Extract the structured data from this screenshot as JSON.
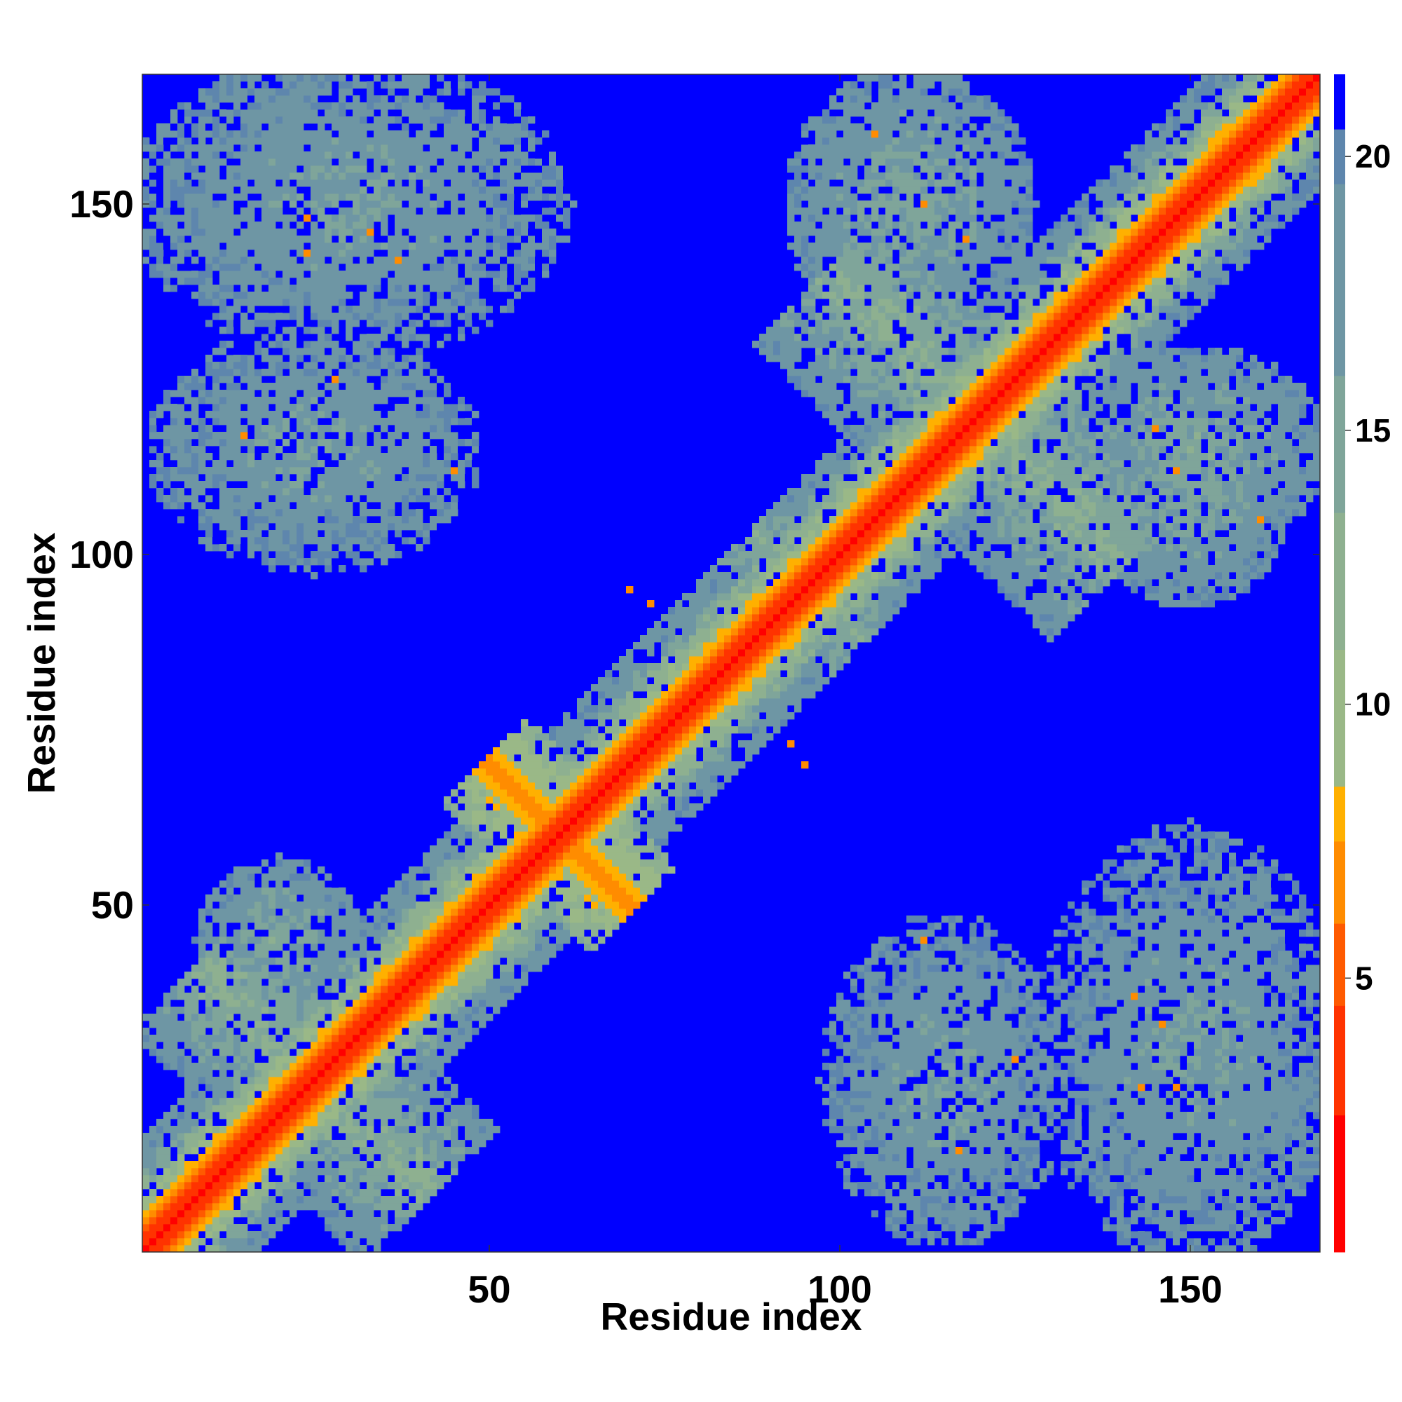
{
  "chart_data": {
    "type": "heatmap",
    "title": "",
    "xlabel": "Residue index",
    "ylabel": "Residue index",
    "n_residues": 168,
    "xlim": [
      1,
      168
    ],
    "ylim": [
      1,
      168
    ],
    "x_ticks": [
      50,
      100,
      150
    ],
    "y_ticks": [
      50,
      100,
      150
    ],
    "colorbar": {
      "ticks": [
        5,
        10,
        15,
        20
      ],
      "range": [
        0,
        21.5
      ],
      "colors": [
        "#ff0000",
        "#ff3300",
        "#ff5a00",
        "#ff8c00",
        "#ffb000",
        "#9ab887",
        "#8eb090",
        "#7fa59a",
        "#6e96a4",
        "#5e86ad",
        "#0000ff"
      ],
      "stops": [
        0,
        2.5,
        4.5,
        6.0,
        7.5,
        8.5,
        11,
        13.5,
        16,
        19.5,
        20.5,
        21.5
      ]
    },
    "value_cap": 21.5,
    "diagonal_band": {
      "core_width": 2.6,
      "halo_width": 13
    },
    "contact_arms": [
      {
        "center": [
          25,
          25
        ],
        "dir": [
          1,
          -1
        ],
        "half_length": 24,
        "width": 14,
        "base": 13
      },
      {
        "center": [
          60,
          60
        ],
        "dir": [
          1,
          -1
        ],
        "half_length": 15,
        "width": 9,
        "base": 7
      },
      {
        "center": [
          120,
          120
        ],
        "dir": [
          1,
          -1
        ],
        "half_length": 30,
        "width": 16,
        "base": 13
      },
      {
        "center": [
          95,
          95
        ],
        "dir": [
          1,
          -1
        ],
        "half_length": 12,
        "width": 12,
        "base": 14
      }
    ],
    "contact_blobs": [
      {
        "center": [
          30,
          150
        ],
        "radius": [
          32,
          22
        ],
        "base": 15
      },
      {
        "center": [
          25,
          115
        ],
        "radius": [
          24,
          18
        ],
        "base": 15
      },
      {
        "center": [
          110,
          150
        ],
        "radius": [
          18,
          20
        ],
        "base": 14
      },
      {
        "center": [
          150,
          115
        ],
        "radius": [
          20,
          15
        ],
        "base": 14
      },
      {
        "center": [
          150,
          30
        ],
        "radius": [
          22,
          32
        ],
        "base": 15
      },
      {
        "center": [
          115,
          25
        ],
        "radius": [
          18,
          24
        ],
        "base": 15
      },
      {
        "center": [
          150,
          110
        ],
        "radius": [
          15,
          18
        ],
        "base": 14
      },
      {
        "center": [
          20,
          45
        ],
        "radius": [
          12,
          12
        ],
        "base": 14
      }
    ],
    "hotspots": [
      [
        24,
        148
      ],
      [
        24,
        143
      ],
      [
        33,
        146
      ],
      [
        37,
        142
      ],
      [
        28,
        125
      ],
      [
        15,
        117
      ],
      [
        45,
        112
      ],
      [
        70,
        95
      ],
      [
        73,
        93
      ],
      [
        148,
        24
      ],
      [
        143,
        24
      ],
      [
        146,
        33
      ],
      [
        142,
        37
      ],
      [
        125,
        28
      ],
      [
        117,
        15
      ],
      [
        112,
        45
      ],
      [
        95,
        70
      ],
      [
        93,
        73
      ],
      [
        112,
        150
      ],
      [
        118,
        145
      ],
      [
        148,
        112
      ],
      [
        145,
        118
      ],
      [
        105,
        160
      ],
      [
        160,
        105
      ]
    ]
  }
}
